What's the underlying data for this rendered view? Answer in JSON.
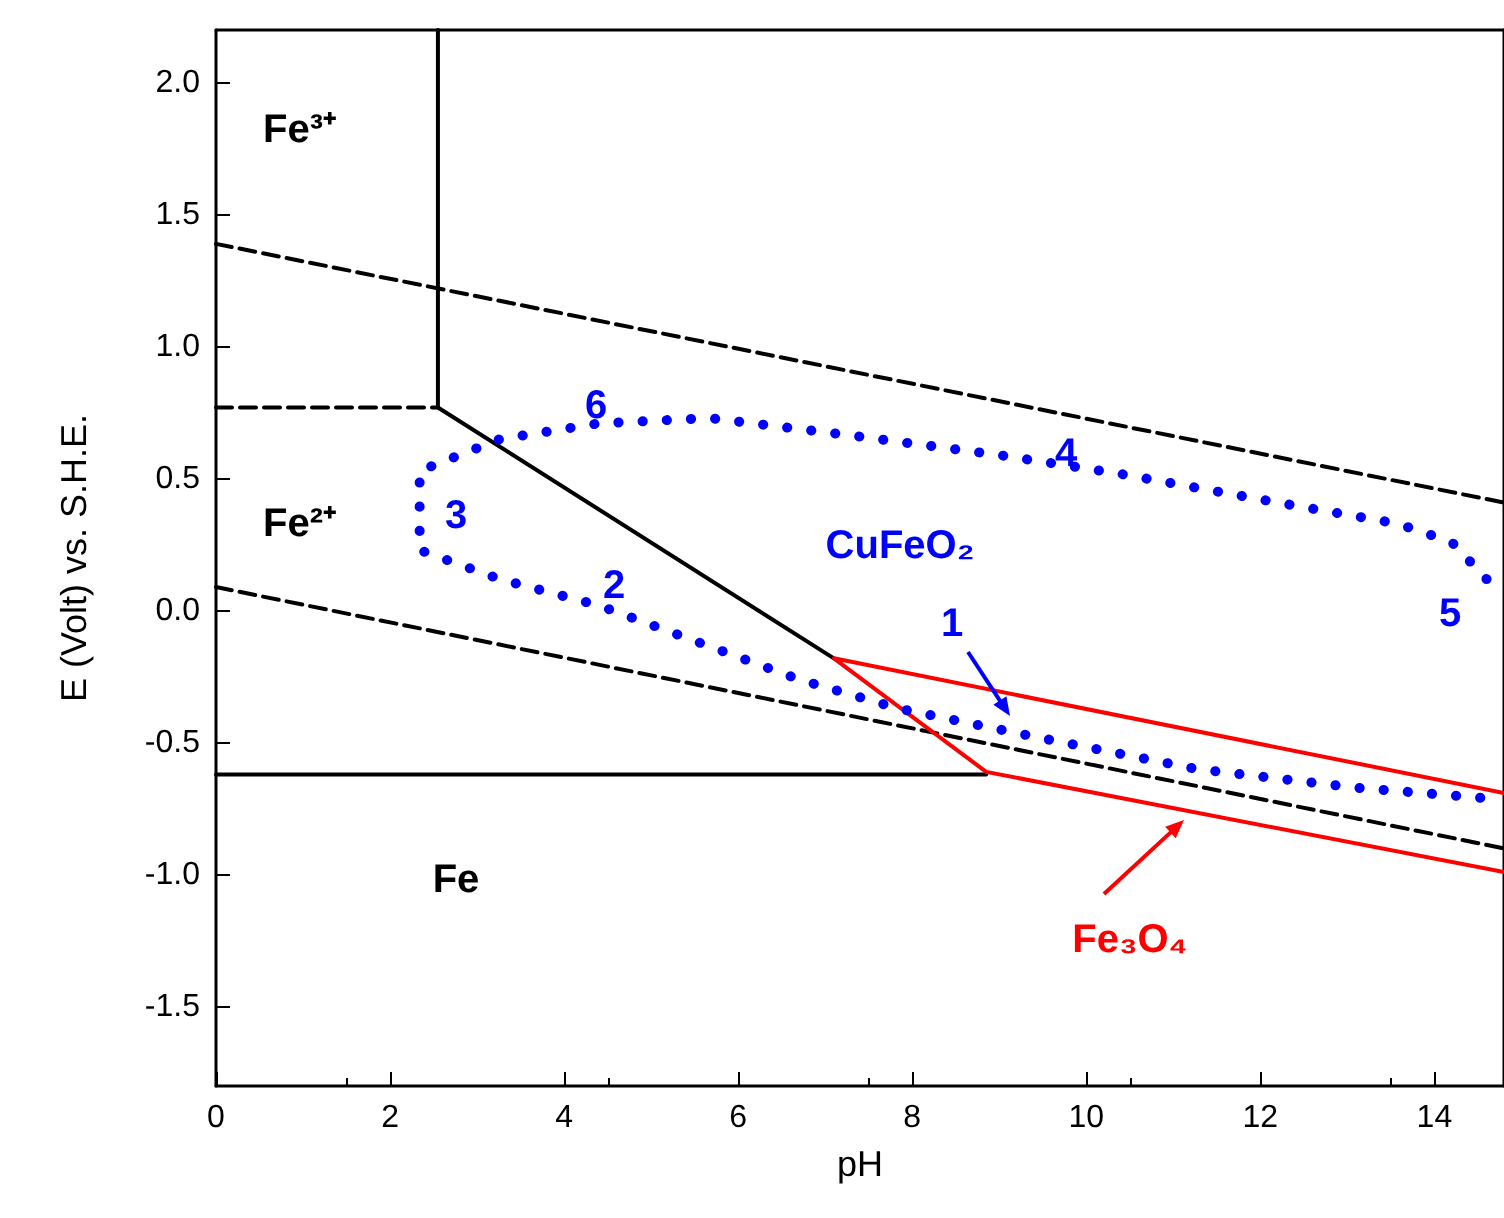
{
  "chart_data": {
    "type": "line",
    "xlabel": "pH",
    "ylabel": "E (Volt) vs. S.H.E.",
    "xlim": [
      0,
      14.8
    ],
    "ylim": [
      -1.8,
      2.2
    ],
    "xticks": [
      0,
      2,
      4,
      6,
      8,
      10,
      12,
      14
    ],
    "yticks": [
      {
        "value": -1.5,
        "label": "-1.5"
      },
      {
        "value": -1,
        "label": "-1.0"
      },
      {
        "value": -0.5,
        "label": "-0.5"
      },
      {
        "value": 0,
        "label": "0.0"
      },
      {
        "value": 0.5,
        "label": "0.5"
      },
      {
        "value": 1,
        "label": "1.0"
      },
      {
        "value": 1.5,
        "label": "1.5"
      },
      {
        "value": 2,
        "label": "2.0"
      }
    ],
    "grid": false,
    "marker": "none",
    "series": [
      {
        "color": "#000000",
        "line_style": "dashed",
        "x": [
          0,
          14.8
        ],
        "values": [
          1.39,
          0.41
        ]
      },
      {
        "color": "#000000",
        "line_style": "dashed",
        "x": [
          0,
          14.8
        ],
        "values": [
          0.09,
          -0.9
        ]
      },
      {
        "color": "#000000",
        "line_style": "dashed",
        "x": [
          0,
          2.55
        ],
        "values": [
          0.77,
          0.77
        ]
      },
      {
        "color": "#000000",
        "line_style": "solid",
        "x": [
          2.55,
          2.55,
          7.1
        ],
        "values": [
          2.2,
          0.77,
          -0.18
        ]
      },
      {
        "color": "#000000",
        "line_style": "solid",
        "x": [
          0,
          8.85
        ],
        "values": [
          -0.62,
          -0.62
        ]
      },
      {
        "color": "#ff0000",
        "line_style": "solid",
        "x": [
          14.8,
          7.1,
          8.85,
          14.8
        ],
        "values": [
          -0.69,
          -0.18,
          -0.61,
          -0.99
        ]
      },
      {
        "color": "#0000ff",
        "line_style": "dotted",
        "x": [
          14.6,
          14.2,
          13.58,
          12.2,
          10.37,
          9.0,
          7.16,
          5.67,
          4.4,
          3.26,
          2.34,
          2.34,
          3.26,
          4.4,
          5.55,
          6.7,
          7.84,
          9.45,
          11.28,
          13.1,
          14.6
        ],
        "values": [
          0.12,
          0.26,
          0.33,
          0.41,
          0.52,
          0.59,
          0.67,
          0.73,
          0.71,
          0.65,
          0.53,
          0.23,
          0.12,
          0.02,
          -0.12,
          -0.26,
          -0.37,
          -0.48,
          -0.6,
          -0.67,
          -0.71
        ]
      }
    ],
    "annotations": [
      "Fe³⁺",
      "Fe²⁺",
      "Fe",
      "CuFeO₂",
      "Fe₃O₄",
      "1",
      "2",
      "3",
      "4",
      "5",
      "6"
    ]
  }
}
